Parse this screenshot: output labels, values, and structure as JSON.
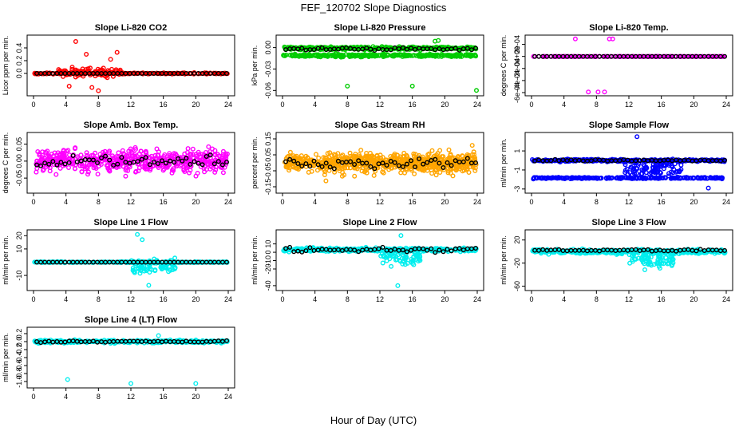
{
  "figure": {
    "title": "FEF_120702  Slope Diagnostics",
    "xlabel": "Hour of Day (UTC)"
  },
  "chart_data": [
    {
      "type": "scatter",
      "title": "Slope Li-820 CO2",
      "ylabel": "Licor ppm per min.",
      "xlim": [
        0,
        24
      ],
      "ylim": [
        -0.3,
        0.55
      ],
      "xticks": [
        "0",
        "4",
        "8",
        "12",
        "16",
        "20",
        "24"
      ],
      "yticks": [
        {
          "v": 0.0,
          "label": "0.0"
        },
        {
          "v": 0.2,
          "label": "0.2"
        },
        {
          "v": 0.4,
          "label": "0.4"
        }
      ],
      "grid": false,
      "series": [
        {
          "color": "#ff0000",
          "pattern": "band",
          "center": 0.0,
          "spread": 0.015,
          "spread2": 0.0,
          "ranges": [
            [
              0.1,
              23.9
            ]
          ],
          "n": 220
        },
        {
          "color": "#ff0000",
          "pattern": "band",
          "center": 0.02,
          "spread": 0.12,
          "spread2": 0.0,
          "ranges": [
            [
              3.0,
              11.0
            ]
          ],
          "n": 110
        },
        {
          "color": "#ff0000",
          "pattern": "pts",
          "x": [
            5.2,
            8.0,
            9.5,
            10.3,
            4.4,
            6.5,
            7.2
          ],
          "y": [
            0.5,
            -0.27,
            0.22,
            0.33,
            -0.2,
            0.3,
            -0.22
          ]
        },
        {
          "color": "#000000",
          "pattern": "trend",
          "y": 0.0,
          "amp": 0.0,
          "n": 48
        }
      ]
    },
    {
      "type": "scatter",
      "title": "Slope Li-820 Pressure",
      "ylabel": "kPa per min.",
      "xlim": [
        0,
        24
      ],
      "ylim": [
        -0.063,
        0.013
      ],
      "xticks": [
        "0",
        "4",
        "8",
        "12",
        "16",
        "20",
        "24"
      ],
      "yticks": [
        {
          "v": 0.0,
          "label": "0.00"
        },
        {
          "v": -0.03,
          "label": "-0.03"
        },
        {
          "v": -0.06,
          "label": "-0.06"
        }
      ],
      "grid": false,
      "series": [
        {
          "color": "#00cc00",
          "pattern": "band",
          "center": -0.001,
          "spread": 0.0035,
          "spread2": 0.0,
          "ranges": [
            [
              0.1,
              23.9
            ]
          ],
          "n": 360
        },
        {
          "color": "#00cc00",
          "pattern": "band",
          "center": -0.011,
          "spread": 0.003,
          "spread2": 0.0,
          "ranges": [
            [
              0.1,
              23.9
            ]
          ],
          "n": 320
        },
        {
          "color": "#00cc00",
          "pattern": "pts",
          "x": [
            8.0,
            16.0,
            23.9,
            18.8,
            19.2
          ],
          "y": [
            -0.054,
            -0.054,
            -0.06,
            0.009,
            0.01
          ]
        },
        {
          "color": "#000000",
          "pattern": "trend",
          "y": -0.002,
          "amp": 0.003,
          "n": 48
        }
      ]
    },
    {
      "type": "scatter",
      "title": "Slope Li-820 Temp.",
      "ylabel": "degrees C per min.",
      "xlim": [
        0,
        24
      ],
      "ylim": [
        -0.0006,
        0.0003
      ],
      "xticks": [
        "0",
        "4",
        "8",
        "12",
        "16",
        "20",
        "24"
      ],
      "yticks": [
        {
          "v": 0.0002,
          "label": "2e-04"
        },
        {
          "v": 0.0,
          "label": "0e+00"
        },
        {
          "v": -0.0002,
          "label": "-2e-04"
        },
        {
          "v": -0.0004,
          "label": "-4e-04"
        },
        {
          "v": -0.0006,
          "label": "-6e-04"
        }
      ],
      "grid": false,
      "series": [
        {
          "color": "#ff00ff",
          "pattern": "band",
          "center": 0.0,
          "spread": 0.0,
          "spread2": 0.0,
          "ranges": [
            [
              0.1,
              23.9
            ]
          ],
          "n": 200
        },
        {
          "color": "#ff00ff",
          "pattern": "pts",
          "x": [
            5.4,
            9.6,
            10.0,
            7.0,
            8.2,
            9.0
          ],
          "y": [
            0.00029,
            0.00029,
            0.00029,
            -0.00059,
            -0.00059,
            -0.00059
          ]
        },
        {
          "color": "#000000",
          "pattern": "trend",
          "y": 0.0,
          "amp": 0.0,
          "n": 48
        }
      ]
    },
    {
      "type": "scatter",
      "title": "Slope Amb. Box Temp.",
      "ylabel": "degrees C per min.",
      "xlim": [
        0,
        24
      ],
      "ylim": [
        -0.085,
        0.075
      ],
      "xticks": [
        "0",
        "4",
        "8",
        "12",
        "16",
        "20",
        "24"
      ],
      "yticks": [
        {
          "v": -0.05,
          "label": "-0.05"
        },
        {
          "v": 0.0,
          "label": "0.00"
        },
        {
          "v": 0.05,
          "label": "0.05"
        }
      ],
      "grid": false,
      "series": [
        {
          "color": "#ff00ff",
          "pattern": "band",
          "center": 0.0,
          "spread": 0.055,
          "spread2": 0.0,
          "ranges": [
            [
              0.1,
              23.9
            ]
          ],
          "n": 520
        },
        {
          "color": "#000000",
          "pattern": "trend",
          "y": 0.0,
          "amp": 0.03,
          "n": 48
        }
      ]
    },
    {
      "type": "scatter",
      "title": "Slope Gas Stream RH",
      "ylabel": "percent per min.",
      "xlim": [
        0,
        24
      ],
      "ylim": [
        -0.17,
        0.17
      ],
      "xticks": [
        "0",
        "4",
        "8",
        "12",
        "16",
        "20",
        "24"
      ],
      "yticks": [
        {
          "v": -0.15,
          "label": "-0.15"
        },
        {
          "v": -0.05,
          "label": "-0.05"
        },
        {
          "v": 0.05,
          "label": "0.05"
        },
        {
          "v": 0.15,
          "label": "0.15"
        }
      ],
      "grid": false,
      "series": [
        {
          "color": "#ffa500",
          "pattern": "band",
          "center": 0.0,
          "spread": 0.09,
          "spread2": 0.0,
          "ranges": [
            [
              0.1,
              23.9
            ]
          ],
          "n": 620
        },
        {
          "color": "#ffa500",
          "pattern": "band",
          "center": 0.0,
          "spread": 0.155,
          "spread2": 0.0,
          "ranges": [
            [
              5.0,
              23.9
            ]
          ],
          "n": 120
        },
        {
          "color": "#000000",
          "pattern": "trend",
          "y": 0.0,
          "amp": 0.06,
          "n": 48
        }
      ]
    },
    {
      "type": "scatter",
      "title": "Slope Sample Flow",
      "ylabel": "ml/min per min.",
      "xlim": [
        0,
        24
      ],
      "ylim": [
        -3.1,
        2.6
      ],
      "xticks": [
        "0",
        "4",
        "8",
        "12",
        "16",
        "20",
        "24"
      ],
      "yticks": [
        {
          "v": -3,
          "label": "-3"
        },
        {
          "v": -1,
          "label": "-1"
        },
        {
          "v": 1,
          "label": "1"
        }
      ],
      "grid": false,
      "series": [
        {
          "color": "#0000ff",
          "pattern": "band",
          "center": 0.0,
          "spread": 0.2,
          "spread2": 0.0,
          "ranges": [
            [
              0.1,
              23.9
            ]
          ],
          "n": 320
        },
        {
          "color": "#0000ff",
          "pattern": "band",
          "center": -1.85,
          "spread": 0.12,
          "spread2": 0.0,
          "ranges": [
            [
              0.1,
              23.9
            ]
          ],
          "n": 260
        },
        {
          "color": "#0000ff",
          "pattern": "band",
          "center": -0.9,
          "spread": 1.3,
          "spread2": 0.0,
          "ranges": [
            [
              11.5,
              18.5
            ]
          ],
          "n": 90
        },
        {
          "color": "#0000ff",
          "pattern": "pts",
          "x": [
            13.0,
            21.8
          ],
          "y": [
            2.5,
            -2.9
          ]
        },
        {
          "color": "#000000",
          "pattern": "trend",
          "y": 0.0,
          "amp": 0.15,
          "n": 48
        }
      ]
    },
    {
      "type": "scatter",
      "title": "Slope Line 1 Flow",
      "ylabel": "ml/min per min.",
      "xlim": [
        0,
        24
      ],
      "ylim": [
        -19,
        22
      ],
      "xticks": [
        "0",
        "4",
        "8",
        "12",
        "16",
        "20",
        "24"
      ],
      "yticks": [
        {
          "v": -10,
          "label": "-10"
        },
        {
          "v": 10,
          "label": "10"
        },
        {
          "v": 20,
          "label": "20"
        }
      ],
      "grid": false,
      "series": [
        {
          "color": "#00eeee",
          "pattern": "band",
          "center": 0.0,
          "spread": 0.6,
          "spread2": 0.0,
          "ranges": [
            [
              0.1,
              23.9
            ]
          ],
          "n": 260
        },
        {
          "color": "#00eeee",
          "pattern": "band",
          "center": -3.0,
          "spread": 9.0,
          "spread2": 0.0,
          "ranges": [
            [
              12.0,
              17.5
            ]
          ],
          "n": 90
        },
        {
          "color": "#00eeee",
          "pattern": "pts",
          "x": [
            12.8,
            13.4,
            14.2
          ],
          "y": [
            21.0,
            17.0,
            -17.5
          ]
        },
        {
          "color": "#000000",
          "pattern": "trend",
          "y": 0.0,
          "amp": 0.0,
          "n": 48
        }
      ]
    },
    {
      "type": "scatter",
      "title": "Slope Line 2 Flow",
      "ylabel": "ml/min per min.",
      "xlim": [
        0,
        24
      ],
      "ylim": [
        -42,
        23
      ],
      "xticks": [
        "0",
        "4",
        "8",
        "12",
        "16",
        "20",
        "24"
      ],
      "yticks": [
        {
          "v": -40,
          "label": "-40"
        },
        {
          "v": -20,
          "label": "-20"
        },
        {
          "v": -10,
          "label": "-10"
        },
        {
          "v": 0,
          "label": "0"
        },
        {
          "v": 10,
          "label": "10"
        }
      ],
      "grid": false,
      "series": [
        {
          "color": "#00eeee",
          "pattern": "band",
          "center": 3.0,
          "spread": 3.5,
          "spread2": 0.0,
          "ranges": [
            [
              0.1,
              23.9
            ]
          ],
          "n": 360
        },
        {
          "color": "#00eeee",
          "pattern": "band",
          "center": -5.0,
          "spread": 18.0,
          "spread2": 0.0,
          "ranges": [
            [
              12.0,
              17.0
            ]
          ],
          "n": 80
        },
        {
          "color": "#00eeee",
          "pattern": "pts",
          "x": [
            14.2,
            14.6
          ],
          "y": [
            -40.0,
            20.0
          ]
        },
        {
          "color": "#000000",
          "pattern": "trend",
          "y": 3.0,
          "amp": 4.0,
          "n": 48
        }
      ]
    },
    {
      "type": "scatter",
      "title": "Slope Line 3 Flow",
      "ylabel": "ml/min per min.",
      "xlim": [
        0,
        24
      ],
      "ylim": [
        -62,
        32
      ],
      "xticks": [
        "0",
        "4",
        "8",
        "12",
        "16",
        "20",
        "24"
      ],
      "yticks": [
        {
          "v": -60,
          "label": "-60"
        },
        {
          "v": -20,
          "label": "-20"
        },
        {
          "v": 20,
          "label": "20"
        }
      ],
      "grid": false,
      "series": [
        {
          "color": "#00eeee",
          "pattern": "band",
          "center": 0.0,
          "spread": 6.0,
          "spread2": 0.0,
          "ranges": [
            [
              0.1,
              23.9
            ]
          ],
          "n": 380
        },
        {
          "color": "#00eeee",
          "pattern": "band",
          "center": -15.0,
          "spread": 30.0,
          "spread2": 0.0,
          "ranges": [
            [
              12.0,
              17.5
            ]
          ],
          "n": 90
        },
        {
          "color": "#000000",
          "pattern": "trend",
          "y": 2.0,
          "amp": 3.0,
          "n": 48
        }
      ]
    },
    {
      "type": "scatter",
      "title": "Slope Line 4 (LT) Flow",
      "ylabel": "ml/min per min.",
      "xlim": [
        0,
        24
      ],
      "ylim": [
        -1.08,
        0.28
      ],
      "xticks": [
        "0",
        "4",
        "8",
        "12",
        "16",
        "20",
        "24"
      ],
      "yticks": [
        {
          "v": -1.0,
          "label": "-1.0"
        },
        {
          "v": -0.8,
          "label": "-0.8"
        },
        {
          "v": -0.6,
          "label": "-0.6"
        },
        {
          "v": -0.4,
          "label": "-0.4"
        },
        {
          "v": -0.2,
          "label": "-0.2"
        },
        {
          "v": 0.0,
          "label": "0.0"
        },
        {
          "v": 0.2,
          "label": "0.2"
        }
      ],
      "grid": false,
      "series": [
        {
          "color": "#00eeee",
          "pattern": "band",
          "center": 0.0,
          "spread": 0.06,
          "spread2": 0.0,
          "ranges": [
            [
              0.1,
              23.9
            ]
          ],
          "n": 330
        },
        {
          "color": "#00eeee",
          "pattern": "pts",
          "x": [
            4.2,
            12.0,
            20.0,
            15.4
          ],
          "y": [
            -0.95,
            -1.05,
            -1.05,
            0.15
          ]
        },
        {
          "color": "#000000",
          "pattern": "trend",
          "y": 0.0,
          "amp": 0.03,
          "n": 48
        }
      ]
    }
  ]
}
